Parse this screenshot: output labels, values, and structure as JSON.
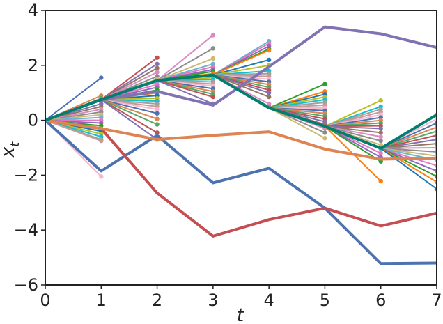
{
  "chart_data": {
    "type": "line",
    "title": "",
    "xlabel": "t",
    "ylabel_main": "x",
    "ylabel_sub": "t",
    "xlim": [
      0,
      7
    ],
    "ylim": [
      -6,
      4
    ],
    "xticks": [
      0,
      1,
      2,
      3,
      4,
      5,
      6,
      7
    ],
    "yticks": [
      -6,
      -4,
      -2,
      0,
      2,
      4
    ],
    "xtick_labels": [
      "0",
      "1",
      "2",
      "3",
      "4",
      "5",
      "6",
      "7"
    ],
    "ytick_labels": [
      "−6",
      "−4",
      "−2",
      "0",
      "2",
      "4"
    ],
    "grid": false,
    "legend": "none",
    "main_series": [
      {
        "color": "#4c72b0",
        "x": [
          0,
          1,
          2,
          3,
          4,
          5,
          6,
          7
        ],
        "y": [
          0,
          -1.85,
          -0.55,
          -2.28,
          -1.75,
          -3.2,
          -5.22,
          -5.2
        ]
      },
      {
        "color": "#c44e52",
        "x": [
          0,
          1,
          2,
          3,
          4,
          5,
          6,
          7
        ],
        "y": [
          0,
          -0.3,
          -2.65,
          -4.22,
          -3.62,
          -3.2,
          -3.85,
          -3.38
        ]
      },
      {
        "color": "#dd8452",
        "x": [
          0,
          1,
          2,
          3,
          4,
          5,
          6,
          7
        ],
        "y": [
          0,
          -0.3,
          -0.7,
          -0.55,
          -0.42,
          -1.05,
          -1.42,
          -1.38
        ]
      },
      {
        "color": "#8172b3",
        "x": [
          0,
          1,
          2,
          3,
          4,
          5,
          6,
          7
        ],
        "y": [
          0,
          0.75,
          1.05,
          0.55,
          1.95,
          3.4,
          3.15,
          2.65
        ]
      },
      {
        "color": "#007f6e",
        "x": [
          0,
          1,
          2,
          3,
          4,
          5,
          6,
          7
        ],
        "y": [
          0,
          0.75,
          1.45,
          1.65,
          0.45,
          -0.22,
          -1.02,
          0.2
        ]
      }
    ],
    "fans": [
      {
        "origin": [
          0,
          0
        ],
        "t_end": 1,
        "ends": [
          1.55,
          0.9,
          0.8,
          0.75,
          0.6,
          0.5,
          0.4,
          0.3,
          0.2,
          0.1,
          0.0,
          -0.1,
          -0.2,
          -0.3,
          -0.4,
          -0.5,
          -0.6,
          -0.7,
          -0.75,
          -2.05
        ]
      },
      {
        "origin": [
          1,
          0.75
        ],
        "t_end": 2,
        "ends": [
          2.28,
          2.05,
          1.9,
          1.75,
          1.6,
          1.5,
          1.4,
          1.3,
          1.2,
          1.1,
          1.0,
          0.9,
          0.8,
          0.7,
          0.6,
          0.5,
          0.4,
          0.25,
          0.05,
          -0.15,
          -0.45,
          -0.7
        ]
      },
      {
        "origin": [
          2,
          1.45
        ],
        "t_end": 3,
        "ends": [
          3.1,
          2.62,
          2.25,
          2.05,
          1.95,
          1.85,
          1.78,
          1.7,
          1.62,
          1.55,
          1.48,
          1.4,
          1.32,
          1.25,
          1.15,
          1.05,
          0.95,
          0.85,
          0.6
        ]
      },
      {
        "origin": [
          3,
          1.65
        ],
        "t_end": 4,
        "ends": [
          2.88,
          2.8,
          2.7,
          2.6,
          2.55,
          2.2,
          2.0,
          1.8,
          1.7,
          1.6,
          1.5,
          1.4,
          1.3,
          1.2,
          1.1,
          1.0,
          0.85,
          0.6,
          0.5
        ]
      },
      {
        "origin": [
          4,
          0.45
        ],
        "t_end": 5,
        "ends": [
          1.32,
          1.05,
          0.95,
          0.85,
          0.75,
          0.65,
          0.55,
          0.45,
          0.35,
          0.25,
          0.15,
          0.05,
          -0.05,
          -0.15,
          -0.3,
          -0.45,
          -0.65
        ]
      },
      {
        "origin": [
          5,
          -0.22
        ],
        "t_end": 6,
        "ends": [
          0.72,
          0.5,
          0.4,
          0.3,
          0.2,
          0.1,
          0.0,
          -0.1,
          -0.2,
          -0.3,
          -0.45,
          -0.6,
          -0.75,
          -0.9,
          -1.05,
          -1.2,
          -1.35,
          -1.5,
          -2.22
        ]
      },
      {
        "origin": [
          6,
          -1.02
        ],
        "t_end": 7,
        "ends": [
          0.2,
          0.05,
          -0.1,
          -0.25,
          -0.4,
          -0.55,
          -0.7,
          -0.85,
          -1.0,
          -1.15,
          -1.3,
          -1.45,
          -1.65,
          -1.85,
          -2.05,
          -2.25,
          -2.5
        ]
      }
    ],
    "palette": [
      "#4c72b0",
      "#dd8452",
      "#55a868",
      "#c44e52",
      "#8172b3",
      "#937860",
      "#da8bc3",
      "#8c8c8c",
      "#ccb974",
      "#64b5cd",
      "#e377c2",
      "#9467bd",
      "#2ca02c",
      "#ff7f0e",
      "#1f77b4",
      "#bcbd22",
      "#17becf",
      "#a0a0a0",
      "#c49c94",
      "#f7b6d2"
    ]
  }
}
